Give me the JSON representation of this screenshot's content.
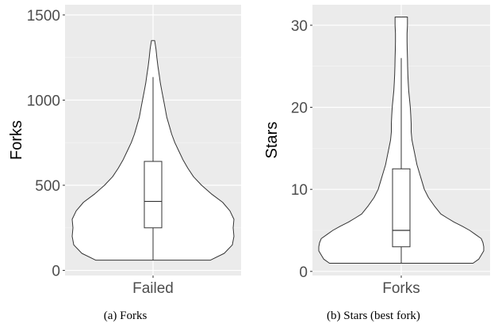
{
  "chart_data": [
    {
      "type": "violin",
      "caption": "(a)  Forks",
      "ylabel": "Forks",
      "xlabel": "",
      "categories": [
        "Failed"
      ],
      "ylim": [
        -30,
        1560
      ],
      "yticks": [
        0,
        500,
        1000,
        1500
      ],
      "grid": true,
      "background": "#ebebeb",
      "violin": {
        "profile": [
          [
            60,
            0.71
          ],
          [
            100,
            0.88
          ],
          [
            150,
            0.98
          ],
          [
            200,
            1.0
          ],
          [
            250,
            0.99
          ],
          [
            300,
            1.0
          ],
          [
            350,
            0.95
          ],
          [
            400,
            0.86
          ],
          [
            450,
            0.72
          ],
          [
            500,
            0.6
          ],
          [
            550,
            0.5
          ],
          [
            600,
            0.43
          ],
          [
            650,
            0.37
          ],
          [
            700,
            0.32
          ],
          [
            750,
            0.27
          ],
          [
            800,
            0.23
          ],
          [
            850,
            0.2
          ],
          [
            900,
            0.17
          ],
          [
            950,
            0.15
          ],
          [
            1000,
            0.13
          ],
          [
            1050,
            0.11
          ],
          [
            1100,
            0.09
          ],
          [
            1150,
            0.075
          ],
          [
            1200,
            0.06
          ],
          [
            1250,
            0.047
          ],
          [
            1300,
            0.036
          ],
          [
            1350,
            0.02
          ]
        ]
      },
      "box": {
        "whisker_low": 60,
        "q1": 250,
        "median": 405,
        "q3": 640,
        "whisker_high": 1135
      }
    },
    {
      "type": "violin",
      "caption": "(b)  Stars (best fork)",
      "ylabel": "Stars",
      "xlabel": "",
      "categories": [
        "Forks"
      ],
      "ylim": [
        -0.5,
        32.5
      ],
      "yticks": [
        0,
        10,
        20,
        30
      ],
      "grid": true,
      "background": "#ebebeb",
      "violin": {
        "profile": [
          [
            1,
            0.87
          ],
          [
            1.5,
            0.94
          ],
          [
            2,
            0.97
          ],
          [
            2.5,
            1.0
          ],
          [
            3,
            1.0
          ],
          [
            3.5,
            0.99
          ],
          [
            4,
            0.97
          ],
          [
            4.5,
            0.9
          ],
          [
            5,
            0.83
          ],
          [
            5.5,
            0.74
          ],
          [
            6,
            0.64
          ],
          [
            6.5,
            0.56
          ],
          [
            7,
            0.48
          ],
          [
            8,
            0.4
          ],
          [
            9,
            0.33
          ],
          [
            10,
            0.28
          ],
          [
            11,
            0.25
          ],
          [
            12,
            0.22
          ],
          [
            13,
            0.19
          ],
          [
            14,
            0.17
          ],
          [
            15,
            0.15
          ],
          [
            16,
            0.13
          ],
          [
            17,
            0.12
          ],
          [
            18,
            0.12
          ],
          [
            19,
            0.115
          ],
          [
            20,
            0.11
          ],
          [
            21,
            0.1
          ],
          [
            22,
            0.09
          ],
          [
            23,
            0.085
          ],
          [
            24,
            0.08
          ],
          [
            25,
            0.077
          ],
          [
            26,
            0.075
          ],
          [
            27,
            0.072
          ],
          [
            28,
            0.07
          ],
          [
            29,
            0.07
          ],
          [
            30,
            0.075
          ],
          [
            31,
            0.075
          ]
        ]
      },
      "box": {
        "whisker_low": 1,
        "q1": 3,
        "median": 5,
        "q3": 12.5,
        "whisker_high": 26
      }
    }
  ]
}
